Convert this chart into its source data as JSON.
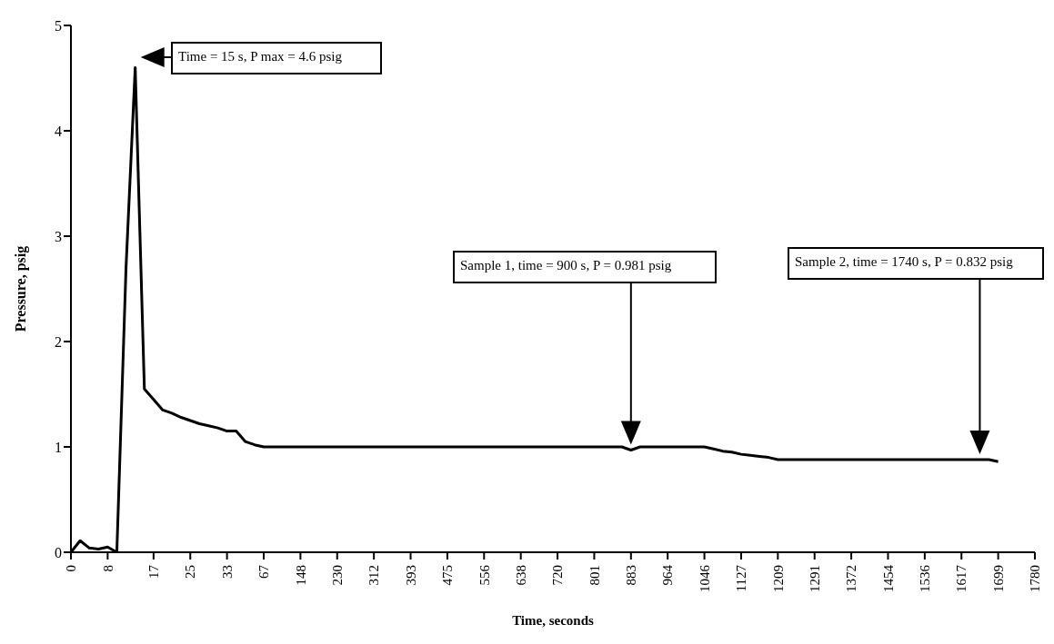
{
  "chart_data": {
    "type": "line",
    "xlabel": "Time, seconds",
    "ylabel": "Pressure,  psig",
    "categories": [
      "0",
      null,
      null,
      null,
      "8",
      null,
      null,
      null,
      null,
      "17",
      null,
      null,
      null,
      "25",
      null,
      null,
      null,
      "33",
      null,
      null,
      null,
      "67",
      null,
      null,
      null,
      "148",
      null,
      null,
      null,
      "230",
      null,
      null,
      null,
      "312",
      null,
      null,
      null,
      "393",
      null,
      null,
      null,
      "475",
      null,
      null,
      null,
      "556",
      null,
      null,
      null,
      "638",
      null,
      null,
      null,
      "720",
      null,
      null,
      null,
      "801",
      null,
      null,
      null,
      "883",
      null,
      null,
      null,
      "964",
      null,
      null,
      null,
      "1046",
      null,
      null,
      null,
      "1127",
      null,
      null,
      null,
      "1209",
      null,
      null,
      null,
      "1291",
      null,
      null,
      null,
      "1372",
      null,
      null,
      null,
      "1454",
      null,
      null,
      null,
      "1536",
      null,
      null,
      null,
      "1617",
      null,
      null,
      null,
      "1699",
      null,
      null,
      null,
      "1780"
    ],
    "series": [
      {
        "color": "#000000",
        "values": [
          0,
          0.11,
          0.04,
          0.03,
          0.05,
          0,
          2.7,
          4.6,
          1.55,
          1.45,
          1.35,
          1.32,
          1.28,
          1.25,
          1.22,
          1.2,
          1.18,
          1.15,
          1.15,
          1.05,
          1.02,
          1.0,
          1,
          1,
          1,
          1,
          1,
          1,
          1,
          1,
          1,
          1,
          1,
          1,
          1,
          1,
          1,
          1,
          1,
          1,
          1,
          1,
          1,
          1,
          1,
          1,
          1,
          1,
          1,
          1,
          1,
          1,
          1,
          1,
          1,
          1,
          1,
          1,
          1,
          1,
          1,
          0.97,
          1,
          1,
          1,
          1,
          1,
          1,
          1,
          1,
          0.98,
          0.96,
          0.95,
          0.93,
          0.92,
          0.91,
          0.9,
          0.88,
          0.88,
          0.88,
          0.88,
          0.88,
          0.88,
          0.88,
          0.88,
          0.88,
          0.88,
          0.88,
          0.88,
          0.88,
          0.88,
          0.88,
          0.88,
          0.88,
          0.88,
          0.88,
          0.88,
          0.88,
          0.88,
          0.88,
          0.88,
          0.86,
          null,
          null,
          null,
          null
        ]
      }
    ],
    "ylim": [
      0,
      5
    ],
    "yticks": [
      0,
      1,
      2,
      3,
      4,
      5
    ],
    "grid": false,
    "marker": "none",
    "line_style": "solid",
    "annotations": [
      "Time = 15 s, P max = 4.6 psig",
      "Sample 1, time = 900 s, P = 0.981 psig",
      "Sample 2, time = 1740 s, P = 0.832 psig"
    ]
  }
}
